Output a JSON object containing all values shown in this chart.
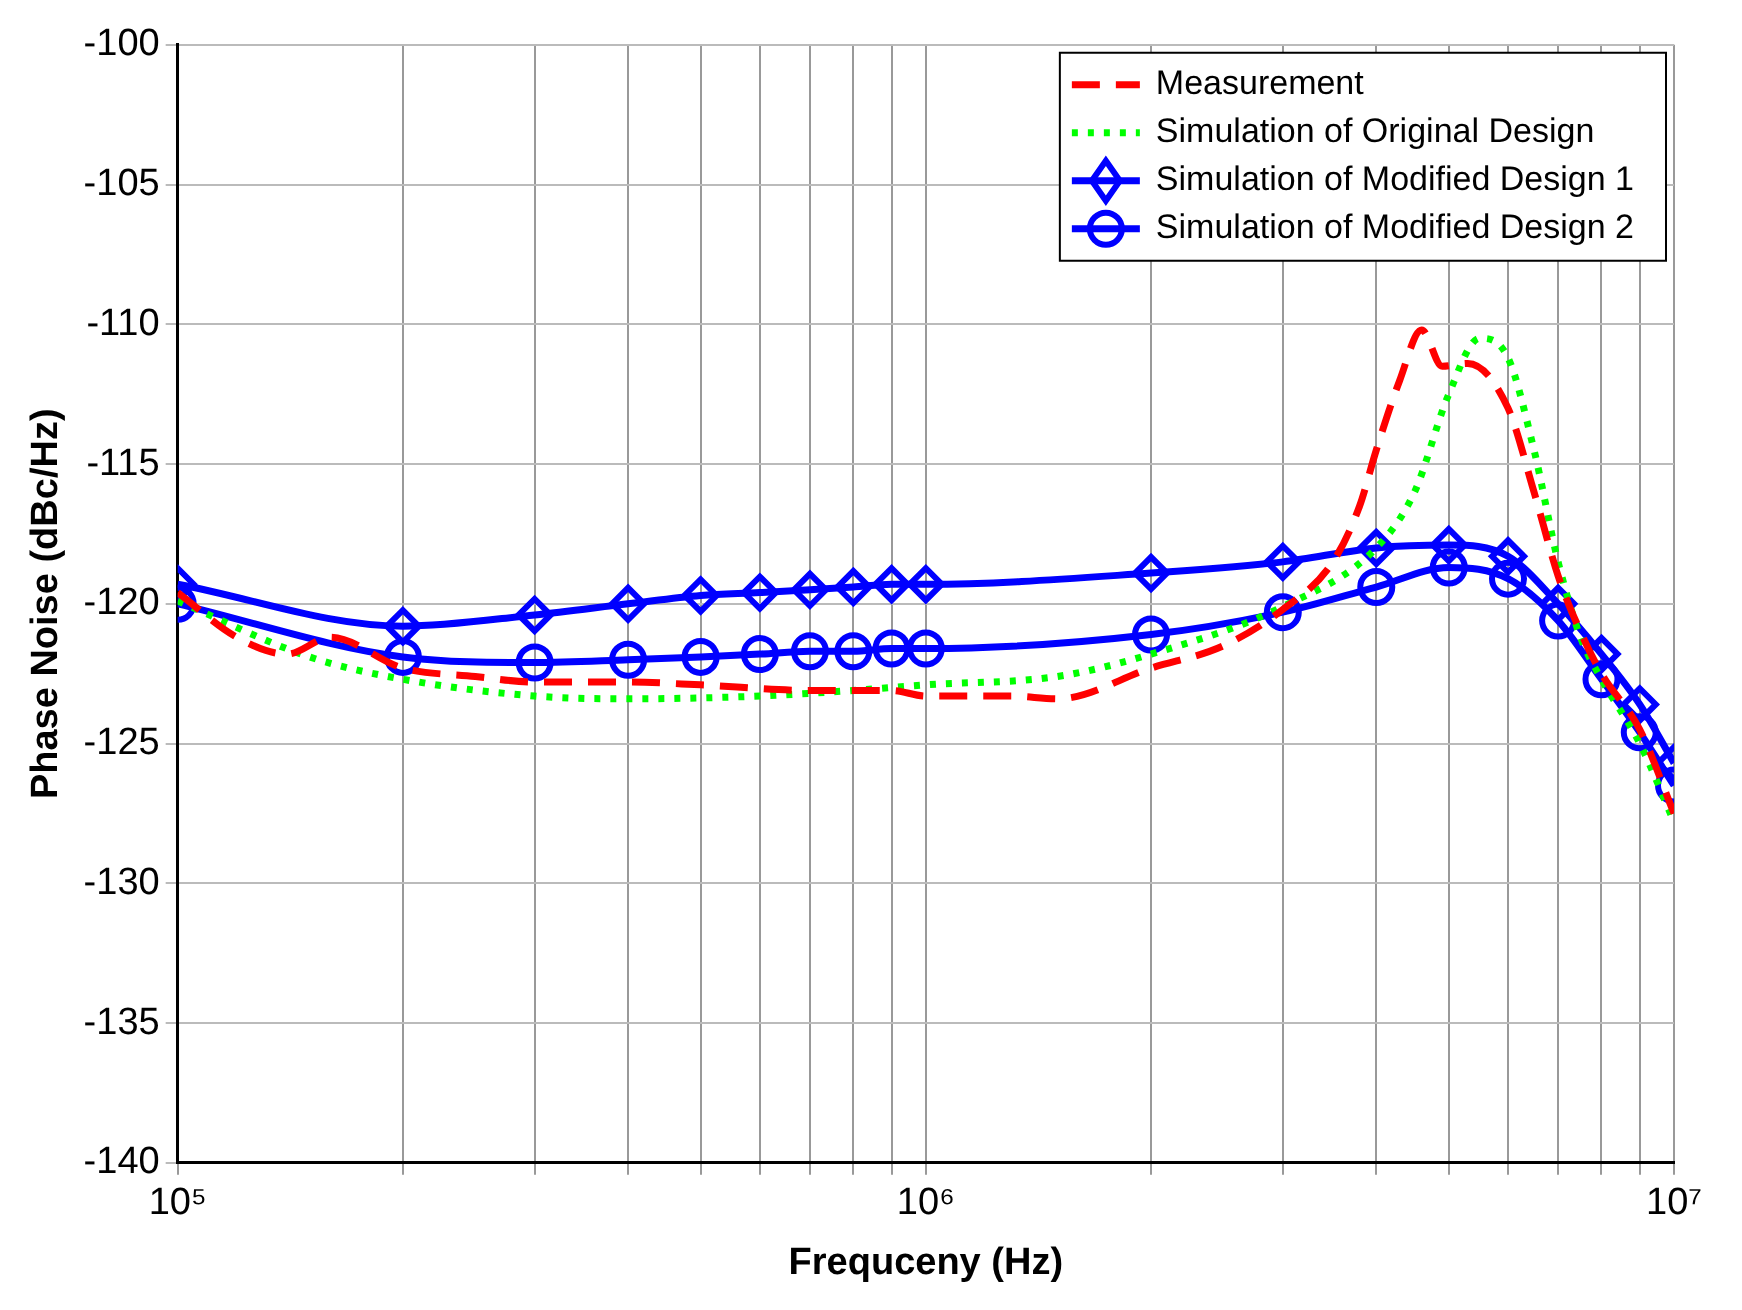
{
  "chart_data": {
    "type": "line",
    "xlabel": "Frequceny (Hz)",
    "ylabel": "Phase Noise (dBc/Hz)",
    "log": "x",
    "grid": true,
    "legend": "top right",
    "xlim": [
      100000,
      10000000
    ],
    "ylim": [
      -140,
      -100
    ],
    "xticks": [
      {
        "value": 100000,
        "label": "10⁵"
      },
      {
        "value": 200000,
        "label": null
      },
      {
        "value": 300000,
        "label": null
      },
      {
        "value": 400000,
        "label": null
      },
      {
        "value": 500000,
        "label": null
      },
      {
        "value": 600000,
        "label": null
      },
      {
        "value": 700000,
        "label": null
      },
      {
        "value": 800000,
        "label": null
      },
      {
        "value": 900000,
        "label": null
      },
      {
        "value": 1000000,
        "label": "10⁶"
      },
      {
        "value": 2000000,
        "label": null
      },
      {
        "value": 3000000,
        "label": null
      },
      {
        "value": 4000000,
        "label": null
      },
      {
        "value": 5000000,
        "label": null
      },
      {
        "value": 6000000,
        "label": null
      },
      {
        "value": 7000000,
        "label": null
      },
      {
        "value": 8000000,
        "label": null
      },
      {
        "value": 9000000,
        "label": null
      },
      {
        "value": 10000000,
        "label": "10⁷"
      }
    ],
    "yticks": [
      -140,
      -135,
      -130,
      -125,
      -120,
      -115,
      -110,
      -105,
      -100
    ],
    "series": [
      {
        "name": "Measurement",
        "color": "#ff0000",
        "line_style": "dashed",
        "marker": "none",
        "x": [
          100000,
          120000,
          140000,
          160000,
          200000,
          250000,
          300000,
          400000,
          500000,
          700000,
          900000,
          1000000,
          1300000,
          1500000,
          2000000,
          2500000,
          3000000,
          3500000,
          3800000,
          4000000,
          4300000,
          4600000,
          4900000,
          5300000,
          6000000,
          6500000,
          7000000,
          7500000,
          8000000,
          9000000,
          10000000
        ],
        "values": [
          -119.6,
          -121.2,
          -121.8,
          -121.2,
          -122.3,
          -122.6,
          -122.8,
          -122.8,
          -122.9,
          -123.1,
          -123.1,
          -123.3,
          -123.3,
          -123.4,
          -122.3,
          -121.5,
          -120.2,
          -118.5,
          -116.5,
          -114.5,
          -112,
          -110.2,
          -111.5,
          -111.4,
          -113,
          -116,
          -119,
          -121,
          -122.5,
          -124.5,
          -127.5
        ]
      },
      {
        "name": "Simulation of Original Design",
        "color": "#00ff00",
        "line_style": "dotted",
        "marker": "none",
        "x": [
          100000,
          150000,
          200000,
          300000,
          400000,
          600000,
          800000,
          1000000,
          1500000,
          2000000,
          3000000,
          4000000,
          4500000,
          5000000,
          5500000,
          6000000,
          6500000,
          7000000,
          7500000,
          8000000,
          9000000,
          10000000
        ],
        "values": [
          -119.9,
          -121.9,
          -122.7,
          -123.3,
          -123.4,
          -123.3,
          -123.1,
          -122.9,
          -122.6,
          -121.8,
          -120.1,
          -118,
          -116,
          -112.5,
          -110.5,
          -111.2,
          -114.5,
          -118.5,
          -121.2,
          -122.7,
          -125,
          -127.8
        ]
      },
      {
        "name": "Simulation of Modified Design 1",
        "color": "#0000ff",
        "line_style": "solid",
        "marker": "diamond",
        "x": [
          100000,
          200000,
          300000,
          400000,
          500000,
          600000,
          700000,
          800000,
          900000,
          1000000,
          2000000,
          3000000,
          4000000,
          5000000,
          6000000,
          7000000,
          8000000,
          9000000,
          10000000
        ],
        "values": [
          -119.3,
          -120.8,
          -120.4,
          -120,
          -119.7,
          -119.6,
          -119.5,
          -119.4,
          -119.3,
          -119.3,
          -118.9,
          -118.5,
          -118,
          -117.9,
          -118.3,
          -120,
          -121.8,
          -123.6,
          -125.7
        ]
      },
      {
        "name": "Simulation of Modified Design 2",
        "color": "#0000ff",
        "line_style": "solid",
        "marker": "circle",
        "x": [
          100000,
          200000,
          300000,
          400000,
          500000,
          600000,
          700000,
          800000,
          900000,
          1000000,
          2000000,
          3000000,
          4000000,
          5000000,
          6000000,
          7000000,
          8000000,
          9000000,
          10000000
        ],
        "values": [
          -120,
          -121.9,
          -122.1,
          -122,
          -121.9,
          -121.8,
          -121.7,
          -121.7,
          -121.6,
          -121.6,
          -121.1,
          -120.3,
          -119.4,
          -118.7,
          -119.1,
          -120.6,
          -122.7,
          -124.6,
          -126.5
        ]
      }
    ]
  }
}
